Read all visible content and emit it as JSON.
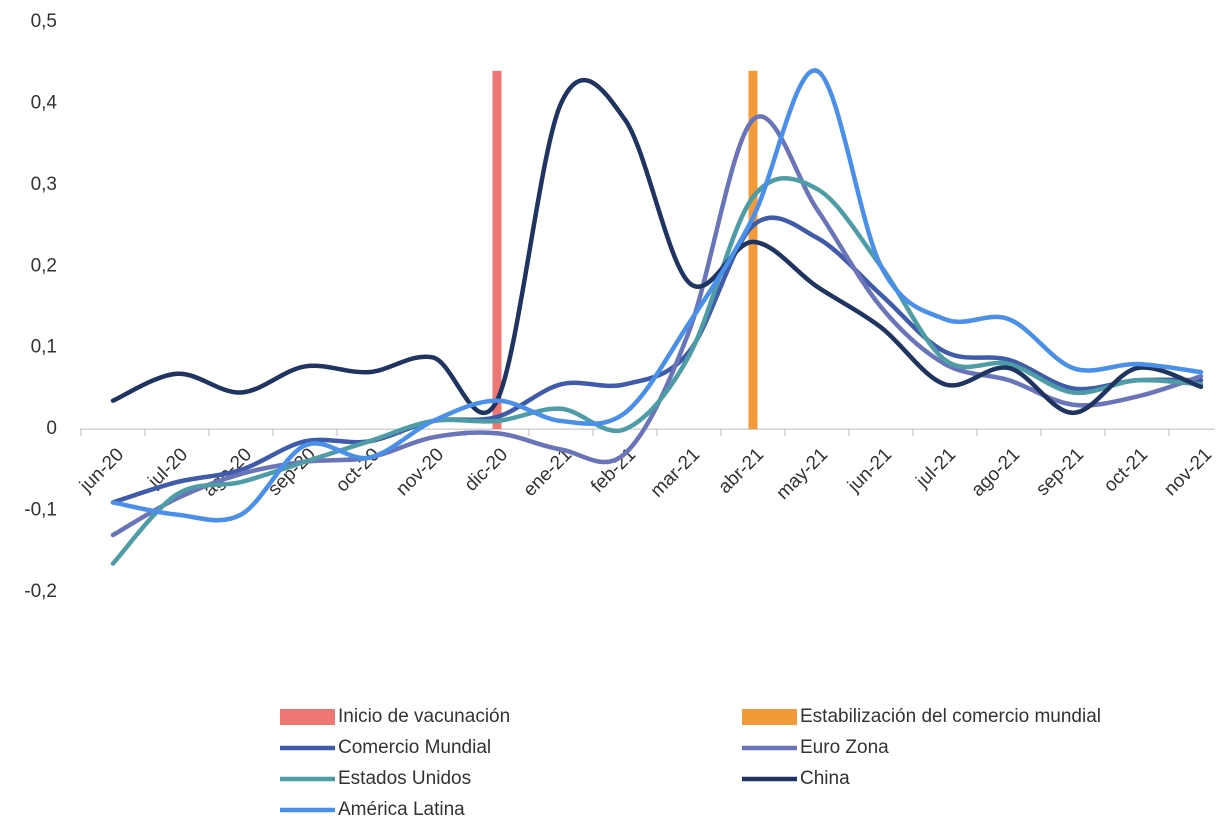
{
  "chart_data": {
    "type": "line",
    "categories": [
      "jun-20",
      "jul-20",
      "ago-20",
      "sep-20",
      "oct-20",
      "nov-20",
      "dic-20",
      "ene-21",
      "feb-21",
      "mar-21",
      "abr-21",
      "may-21",
      "jun-21",
      "jul-21",
      "ago-21",
      "sep-21",
      "oct-21",
      "nov-21"
    ],
    "ylim": [
      -0.2,
      0.5
    ],
    "yticks": [
      {
        "value": -0.2,
        "label": "-0,2"
      },
      {
        "value": -0.1,
        "label": "-0,1"
      },
      0,
      {
        "value": 0.1,
        "label": "0,1"
      },
      {
        "value": 0.2,
        "label": "0,2"
      },
      {
        "value": 0.3,
        "label": "0,3"
      },
      {
        "value": 0.4,
        "label": "0,4"
      },
      {
        "value": 0.5,
        "label": "0,5"
      }
    ],
    "grid": false,
    "legend": "bottom",
    "series": [
      {
        "name": "Inicio de vacunación",
        "type": "bar",
        "color": "#ee7774",
        "values": [
          null,
          null,
          null,
          null,
          null,
          null,
          0.44,
          null,
          null,
          null,
          null,
          null,
          null,
          null,
          null,
          null,
          null,
          null
        ]
      },
      {
        "name": "Estabilización del comercio mundial",
        "type": "bar",
        "color": "#f29a38",
        "values": [
          null,
          null,
          null,
          null,
          null,
          null,
          null,
          null,
          null,
          null,
          0.44,
          null,
          null,
          null,
          null,
          null,
          null,
          null
        ]
      },
      {
        "name": "Comercio Mundial",
        "color": "#3f5ba9",
        "values": [
          -0.09,
          -0.065,
          -0.05,
          -0.015,
          -0.015,
          0.01,
          0.015,
          0.055,
          0.055,
          0.095,
          0.25,
          0.235,
          0.165,
          0.095,
          0.085,
          0.05,
          0.06,
          0.06
        ]
      },
      {
        "name": "Euro Zona",
        "color": "#6a74b8",
        "values": [
          -0.13,
          -0.085,
          -0.055,
          -0.04,
          -0.035,
          -0.01,
          -0.005,
          -0.025,
          -0.03,
          0.12,
          0.38,
          0.27,
          0.15,
          0.08,
          0.06,
          0.03,
          0.04,
          0.065
        ]
      },
      {
        "name": "Estados Unidos",
        "color": "#4e9da6",
        "values": [
          -0.165,
          -0.08,
          -0.065,
          -0.04,
          -0.015,
          0.01,
          0.01,
          0.025,
          0.0,
          0.09,
          0.285,
          0.295,
          0.2,
          0.085,
          0.08,
          0.045,
          0.06,
          0.055
        ]
      },
      {
        "name": "China",
        "color": "#1f3461",
        "values": [
          0.035,
          0.068,
          0.045,
          0.077,
          0.07,
          0.088,
          0.035,
          0.4,
          0.38,
          0.18,
          0.23,
          0.175,
          0.125,
          0.055,
          0.075,
          0.02,
          0.075,
          0.052
        ]
      },
      {
        "name": "América Latina",
        "color": "#4a90e8",
        "values": [
          -0.09,
          -0.105,
          -0.105,
          -0.02,
          -0.035,
          0.01,
          0.035,
          0.01,
          0.02,
          0.13,
          0.26,
          0.44,
          0.2,
          0.135,
          0.135,
          0.075,
          0.08,
          0.07
        ]
      }
    ]
  }
}
